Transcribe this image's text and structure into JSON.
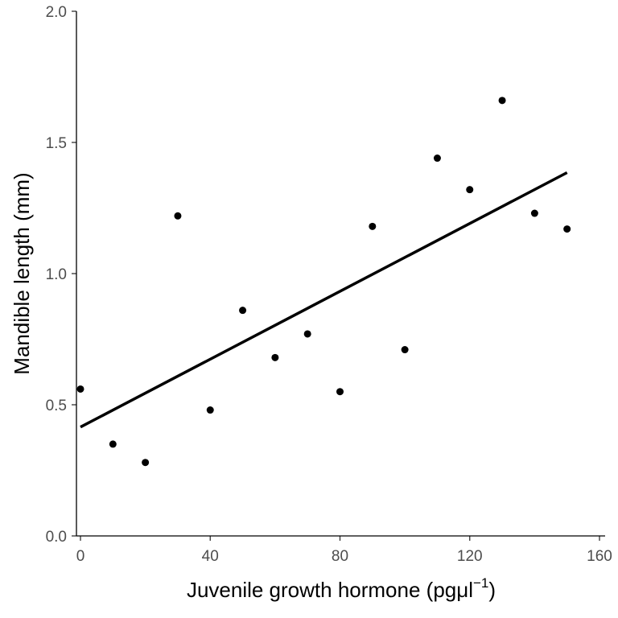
{
  "chart_data": {
    "type": "scatter",
    "xlabel": "Juvenile growth hormone (pgμl",
    "xlabel_sup": "−1",
    "xlabel_close": ")",
    "ylabel": "Mandible length (mm)",
    "xlim": [
      0,
      160
    ],
    "ylim": [
      0,
      2.0
    ],
    "x_ticks": [
      0,
      40,
      80,
      120,
      160
    ],
    "x_tick_labels": [
      "0",
      "40",
      "80",
      "120",
      "160"
    ],
    "y_ticks": [
      0,
      0.5,
      1.0,
      1.5,
      2.0
    ],
    "y_tick_labels": [
      "0.0",
      "0.5",
      "1.0",
      "1.5",
      "2.0"
    ],
    "grid": false,
    "points": {
      "x": [
        0,
        10,
        20,
        30,
        40,
        50,
        60,
        70,
        80,
        90,
        100,
        110,
        120,
        130,
        140,
        150
      ],
      "y": [
        0.56,
        0.35,
        0.28,
        1.22,
        0.48,
        0.86,
        0.68,
        0.77,
        0.55,
        1.18,
        0.71,
        1.44,
        1.32,
        1.66,
        1.23,
        1.17
      ]
    },
    "fit_line": {
      "x": [
        0,
        150
      ],
      "y": [
        0.415,
        1.385
      ]
    },
    "colors": {
      "points": "#000000",
      "line": "#000000",
      "axis": "#000000",
      "tick_text": "#4d4d4d"
    }
  }
}
